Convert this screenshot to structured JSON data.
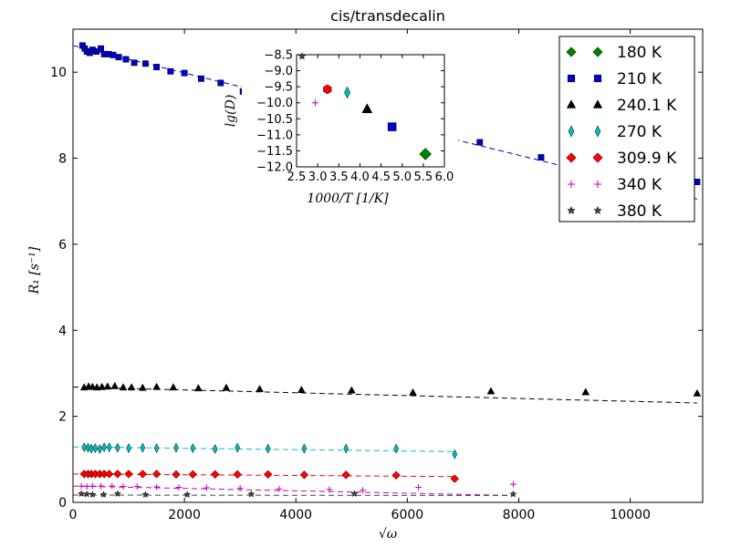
{
  "chart_data": {
    "type": "scatter",
    "title": "cis/transdecalin",
    "xlabel": "√ω",
    "ylabel": "R₁ [s⁻¹]",
    "xlim": [
      0,
      11300
    ],
    "ylim": [
      0,
      11
    ],
    "xticks": [
      0,
      2000,
      4000,
      6000,
      8000,
      10000
    ],
    "yticks": [
      0,
      2,
      4,
      6,
      8,
      10
    ],
    "legend_position": "upper right",
    "grid": false,
    "series": [
      {
        "name": "180 K",
        "marker": "diamond",
        "color": "#008000",
        "points": [],
        "fit": []
      },
      {
        "name": "210 K",
        "marker": "square",
        "color": "#0000cc",
        "points": [
          [
            170,
            10.62
          ],
          [
            210,
            10.55
          ],
          [
            250,
            10.48
          ],
          [
            300,
            10.45
          ],
          [
            350,
            10.52
          ],
          [
            420,
            10.48
          ],
          [
            500,
            10.55
          ],
          [
            560,
            10.42
          ],
          [
            640,
            10.42
          ],
          [
            720,
            10.4
          ],
          [
            820,
            10.35
          ],
          [
            950,
            10.3
          ],
          [
            1100,
            10.22
          ],
          [
            1300,
            10.2
          ],
          [
            1500,
            10.12
          ],
          [
            1750,
            10.02
          ],
          [
            2000,
            9.98
          ],
          [
            2300,
            9.85
          ],
          [
            2650,
            9.75
          ],
          [
            3050,
            9.55
          ],
          [
            3550,
            9.48
          ],
          [
            7300,
            8.37
          ],
          [
            8400,
            8.02
          ],
          [
            11200,
            7.45
          ]
        ],
        "fit": [
          [
            0,
            10.62
          ],
          [
            11200,
            7.05
          ]
        ]
      },
      {
        "name": "240.1 K",
        "marker": "triangle",
        "color": "#000000",
        "points": [
          [
            200,
            2.67
          ],
          [
            280,
            2.69
          ],
          [
            350,
            2.68
          ],
          [
            430,
            2.67
          ],
          [
            520,
            2.68
          ],
          [
            620,
            2.69
          ],
          [
            750,
            2.7
          ],
          [
            900,
            2.67
          ],
          [
            1050,
            2.67
          ],
          [
            1250,
            2.66
          ],
          [
            1500,
            2.68
          ],
          [
            1800,
            2.67
          ],
          [
            2250,
            2.65
          ],
          [
            2750,
            2.66
          ],
          [
            3350,
            2.63
          ],
          [
            4100,
            2.61
          ],
          [
            5000,
            2.6
          ],
          [
            6100,
            2.55
          ],
          [
            7500,
            2.58
          ],
          [
            9200,
            2.56
          ],
          [
            11200,
            2.53
          ]
        ],
        "fit": [
          [
            0,
            2.68
          ],
          [
            11200,
            2.31
          ]
        ]
      },
      {
        "name": "270 K",
        "marker": "thin_diamond",
        "color": "#00bfbf",
        "points": [
          [
            200,
            1.28
          ],
          [
            270,
            1.27
          ],
          [
            330,
            1.25
          ],
          [
            400,
            1.26
          ],
          [
            480,
            1.24
          ],
          [
            560,
            1.28
          ],
          [
            650,
            1.28
          ],
          [
            800,
            1.27
          ],
          [
            1000,
            1.26
          ],
          [
            1250,
            1.27
          ],
          [
            1500,
            1.26
          ],
          [
            1850,
            1.27
          ],
          [
            2150,
            1.26
          ],
          [
            2550,
            1.24
          ],
          [
            2950,
            1.27
          ],
          [
            3500,
            1.25
          ],
          [
            4150,
            1.25
          ],
          [
            4900,
            1.25
          ],
          [
            5800,
            1.25
          ],
          [
            6850,
            1.12
          ]
        ],
        "fit": [
          [
            0,
            1.29
          ],
          [
            6850,
            1.18
          ]
        ]
      },
      {
        "name": "309.9 K",
        "marker": "diamond",
        "color": "#ff0000",
        "points": [
          [
            200,
            0.66
          ],
          [
            270,
            0.66
          ],
          [
            330,
            0.66
          ],
          [
            400,
            0.66
          ],
          [
            480,
            0.66
          ],
          [
            560,
            0.66
          ],
          [
            650,
            0.66
          ],
          [
            800,
            0.66
          ],
          [
            1000,
            0.66
          ],
          [
            1250,
            0.66
          ],
          [
            1500,
            0.66
          ],
          [
            1850,
            0.65
          ],
          [
            2150,
            0.65
          ],
          [
            2550,
            0.65
          ],
          [
            2950,
            0.65
          ],
          [
            3500,
            0.65
          ],
          [
            4150,
            0.64
          ],
          [
            4900,
            0.64
          ],
          [
            5800,
            0.63
          ],
          [
            6850,
            0.55
          ]
        ],
        "fit": [
          [
            0,
            0.66
          ],
          [
            6850,
            0.6
          ]
        ]
      },
      {
        "name": "340 K",
        "marker": "plus",
        "color": "#bf00bf",
        "points": [
          [
            150,
            0.38
          ],
          [
            250,
            0.37
          ],
          [
            350,
            0.38
          ],
          [
            500,
            0.38
          ],
          [
            700,
            0.38
          ],
          [
            900,
            0.37
          ],
          [
            1150,
            0.37
          ],
          [
            1500,
            0.36
          ],
          [
            1900,
            0.35
          ],
          [
            2400,
            0.34
          ],
          [
            3000,
            0.33
          ],
          [
            3700,
            0.31
          ],
          [
            4600,
            0.3
          ],
          [
            5200,
            0.28
          ],
          [
            6200,
            0.35
          ],
          [
            7900,
            0.42
          ]
        ],
        "fit": [
          [
            0,
            0.38
          ],
          [
            7900,
            0.16
          ]
        ]
      },
      {
        "name": "380 K",
        "marker": "star",
        "color": "#444444",
        "points": [
          [
            150,
            0.2
          ],
          [
            250,
            0.19
          ],
          [
            350,
            0.18
          ],
          [
            550,
            0.18
          ],
          [
            800,
            0.2
          ],
          [
            1300,
            0.18
          ],
          [
            2050,
            0.18
          ],
          [
            3200,
            0.19
          ],
          [
            5050,
            0.2
          ],
          [
            7900,
            0.19
          ]
        ],
        "fit": [
          [
            0,
            0.17
          ],
          [
            7900,
            0.16
          ]
        ]
      }
    ],
    "inset": {
      "type": "scatter",
      "xlabel": "1000/T [1/K]",
      "ylabel": "lg(D)",
      "xlim": [
        2.5,
        6.0
      ],
      "ylim": [
        -12.0,
        -8.5
      ],
      "xticks": [
        2.5,
        3.0,
        3.5,
        4.0,
        4.5,
        5.0,
        5.5,
        6.0
      ],
      "yticks": [
        -8.5,
        -9.0,
        -9.5,
        -10.0,
        -10.5,
        -11.0,
        -11.5,
        -12.0
      ],
      "points": [
        {
          "x": 5.55,
          "y": -11.6,
          "marker": "diamond",
          "color": "#008000"
        },
        {
          "x": 4.76,
          "y": -10.75,
          "marker": "square",
          "color": "#0000cc"
        },
        {
          "x": 4.17,
          "y": -10.2,
          "marker": "triangle",
          "color": "#000000"
        },
        {
          "x": 3.7,
          "y": -9.68,
          "marker": "thin_diamond",
          "color": "#00bfbf"
        },
        {
          "x": 3.23,
          "y": -9.58,
          "marker": "hexagon",
          "color": "#ff0000"
        },
        {
          "x": 2.94,
          "y": -10.0,
          "marker": "plus",
          "color": "#bf00bf"
        },
        {
          "x": 2.63,
          "y": -8.55,
          "marker": "star",
          "color": "#444444"
        }
      ]
    }
  }
}
